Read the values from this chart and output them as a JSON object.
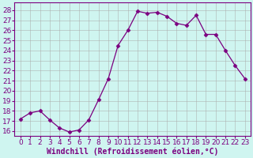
{
  "x": [
    0,
    1,
    2,
    3,
    4,
    5,
    6,
    7,
    8,
    9,
    10,
    11,
    12,
    13,
    14,
    15,
    16,
    17,
    18,
    19,
    20,
    21,
    22,
    23
  ],
  "y": [
    17.2,
    17.8,
    18.0,
    17.1,
    16.3,
    15.9,
    16.1,
    17.1,
    19.1,
    21.2,
    24.5,
    26.0,
    27.9,
    27.7,
    27.8,
    27.4,
    26.7,
    26.5,
    27.5,
    25.6,
    25.6,
    24.0,
    22.5,
    21.2
  ],
  "line_color": "#7b0080",
  "marker": "D",
  "bg_color": "#cff5f0",
  "grid_color": "#aaaaaa",
  "xlabel": "Windchill (Refroidissement éolien,°C)",
  "xlabel_fontsize": 7,
  "tick_fontsize": 6.5,
  "ylim": [
    15.5,
    28.8
  ],
  "yticks": [
    16,
    17,
    18,
    19,
    20,
    21,
    22,
    23,
    24,
    25,
    26,
    27,
    28
  ],
  "xticks": [
    0,
    1,
    2,
    3,
    4,
    5,
    6,
    7,
    8,
    9,
    10,
    11,
    12,
    13,
    14,
    15,
    16,
    17,
    18,
    19,
    20,
    21,
    22,
    23
  ],
  "line_width": 0.9,
  "marker_size": 2.5
}
